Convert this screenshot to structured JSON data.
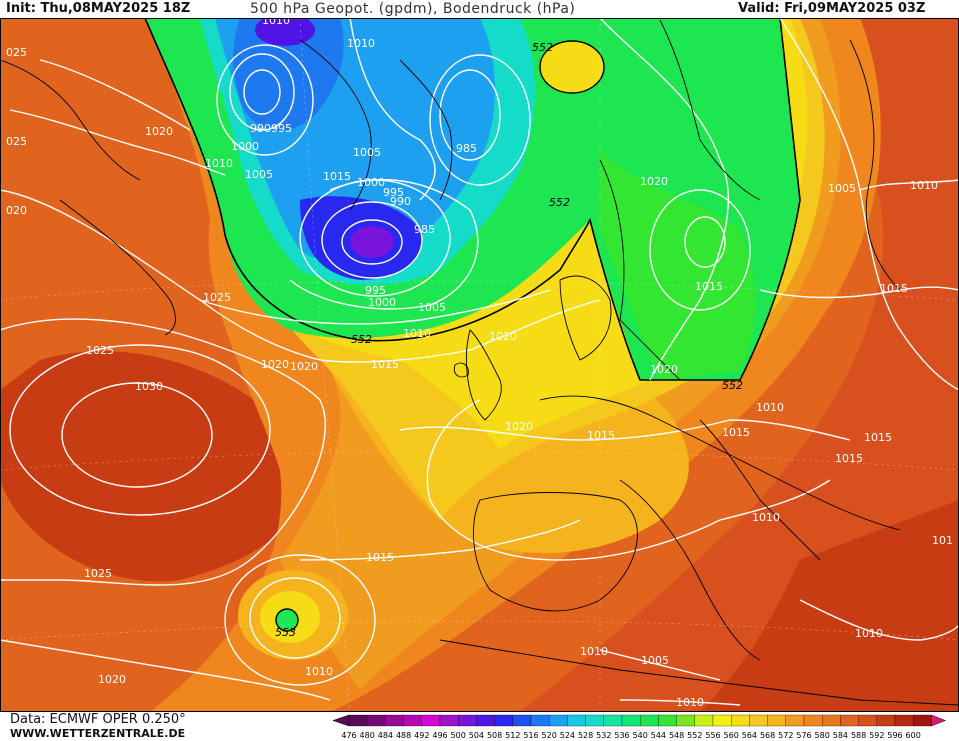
{
  "header": {
    "init": "Init: Thu,08MAY2025 18Z",
    "title": "500 hPa Geopot. (gpdm), Bodendruck (hPa)",
    "valid": "Valid: Fri,09MAY2025 03Z"
  },
  "footer": {
    "data_source": "Data: ECMWF OPER 0.250°",
    "site": "WWW.WETTERZENTRALE.DE"
  },
  "colors": {
    "ocean_orange": "#e8781e",
    "deep_red": "#c83c14",
    "orange": "#f0961e",
    "light_orange": "#f5b41e",
    "yellow": "#f5dc14",
    "green": "#1ee632",
    "cyan": "#14c8e6",
    "blue": "#1e64f0",
    "violet": "#6414e6",
    "isobar": "#ffffff",
    "coast": "#000000"
  },
  "pressure_labels": [
    {
      "id": "p1010a",
      "text": "1010"
    },
    {
      "id": "p1000a",
      "text": "1000"
    },
    {
      "id": "p1025a",
      "text": "025"
    },
    {
      "id": "p1020a",
      "text": "1020"
    },
    {
      "id": "p1025b",
      "text": "025"
    },
    {
      "id": "p1010b",
      "text": "1010"
    },
    {
      "id": "p995a",
      "text": "990995"
    },
    {
      "id": "p1000b",
      "text": "1000"
    },
    {
      "id": "p1005a",
      "text": "1005"
    },
    {
      "id": "p1010c",
      "text": "1010"
    },
    {
      "id": "p1005b",
      "text": "1005"
    },
    {
      "id": "p1015a",
      "text": "1015"
    },
    {
      "id": "p1000c",
      "text": "1000"
    },
    {
      "id": "p995b",
      "text": "995"
    },
    {
      "id": "p990",
      "text": "990"
    },
    {
      "id": "p985a",
      "text": "985"
    },
    {
      "id": "p985b",
      "text": "985"
    },
    {
      "id": "p995c",
      "text": "995"
    },
    {
      "id": "p1000d",
      "text": "1000"
    },
    {
      "id": "p1005c",
      "text": "1005"
    },
    {
      "id": "p1010d",
      "text": "1010"
    },
    {
      "id": "p1020b",
      "text": "1020"
    },
    {
      "id": "p1005d",
      "text": "1005"
    },
    {
      "id": "p1010e",
      "text": "1010"
    },
    {
      "id": "p020",
      "text": "020"
    },
    {
      "id": "p1025c",
      "text": "1025"
    },
    {
      "id": "p1020c",
      "text": "1020"
    },
    {
      "id": "p1020d",
      "text": "1020"
    },
    {
      "id": "p1015b",
      "text": "1015"
    },
    {
      "id": "p1020e",
      "text": "1020"
    },
    {
      "id": "p1025d",
      "text": "1025"
    },
    {
      "id": "p1030",
      "text": "1030"
    },
    {
      "id": "p1015c",
      "text": "1015"
    },
    {
      "id": "p1015d",
      "text": "1015"
    },
    {
      "id": "p1020f",
      "text": "1020"
    },
    {
      "id": "p1020g",
      "text": "1020"
    },
    {
      "id": "p1010f",
      "text": "1010"
    },
    {
      "id": "p1015e",
      "text": "1015"
    },
    {
      "id": "p1015f",
      "text": "1015"
    },
    {
      "id": "p1015g",
      "text": "1015"
    },
    {
      "id": "p1015h",
      "text": "1015"
    },
    {
      "id": "p1010g",
      "text": "1010"
    },
    {
      "id": "p1015i",
      "text": "1015"
    },
    {
      "id": "p1025e",
      "text": "1025"
    },
    {
      "id": "p1010h",
      "text": "1010"
    },
    {
      "id": "p1020h",
      "text": "1020"
    },
    {
      "id": "p1010i",
      "text": "1010"
    },
    {
      "id": "p1005e",
      "text": "1005"
    },
    {
      "id": "p1010j",
      "text": "1010"
    },
    {
      "id": "p1010k",
      "text": "1010"
    },
    {
      "id": "p101",
      "text": "101"
    },
    {
      "id": "p1005f",
      "text": "1005"
    }
  ],
  "geopot_labels": [
    {
      "id": "g552a",
      "text": "552"
    },
    {
      "id": "g552b",
      "text": "552"
    },
    {
      "id": "g552c",
      "text": "552"
    },
    {
      "id": "g552d",
      "text": "552"
    },
    {
      "id": "g552e",
      "text": "553"
    }
  ],
  "legend": {
    "values": [
      "476",
      "480",
      "484",
      "488",
      "492",
      "496",
      "500",
      "504",
      "508",
      "512",
      "516",
      "520",
      "524",
      "528",
      "532",
      "536",
      "540",
      "544",
      "548",
      "552",
      "556",
      "560",
      "564",
      "568",
      "572",
      "576",
      "580",
      "584",
      "588",
      "592",
      "596",
      "600"
    ],
    "colors": [
      "#5a0a5a",
      "#780a78",
      "#960a96",
      "#b40ab4",
      "#d20ad2",
      "#a014c8",
      "#7814dc",
      "#5014e6",
      "#2828f0",
      "#1e50f0",
      "#1e78f0",
      "#1ea0f0",
      "#14c8e6",
      "#14dcc8",
      "#14e6a0",
      "#14e678",
      "#1ee650",
      "#32e632",
      "#78e61e",
      "#c8f014",
      "#f5f014",
      "#f5dc14",
      "#f5c81e",
      "#f5b41e",
      "#f09c1e",
      "#f0861e",
      "#e8781e",
      "#e0641e",
      "#d8501e",
      "#c83c14",
      "#b42814",
      "#a01414"
    ]
  }
}
